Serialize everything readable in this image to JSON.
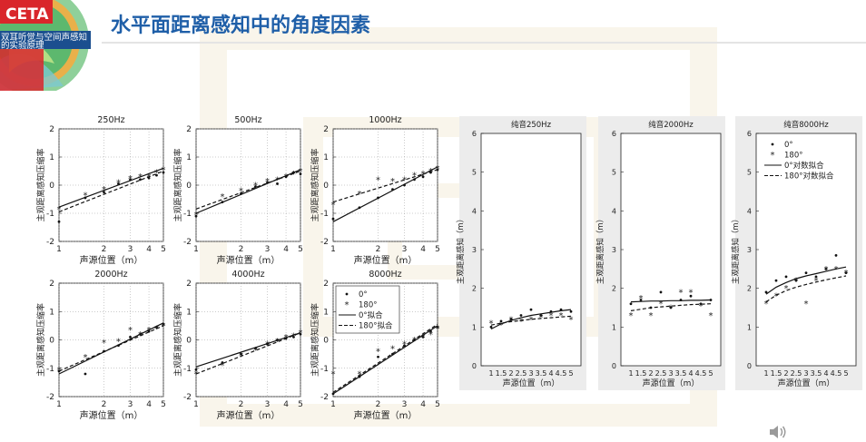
{
  "header": {
    "title": "水平面距离感知中的角度因素",
    "logo_text": "CETA",
    "logo_caption_line1": "双耳听觉与空间声感知",
    "logo_caption_line2": "的实验原理"
  },
  "colors": {
    "title": "#1f5fa8",
    "logo_red": "#d9262b",
    "logo_green": "#3f9a54",
    "logo_blue": "#1b4f8f"
  },
  "chart_data": [
    {
      "id": "p250",
      "type": "scatter",
      "title": "250Hz",
      "xlabel": "声源位置（m）",
      "ylabel": "主观距离感知压缩率",
      "xscale": "log",
      "xlim": [
        1,
        5
      ],
      "ylim": [
        -2,
        2
      ],
      "xticks": [
        1,
        2,
        3,
        4,
        5
      ],
      "xticklabels": [
        "1",
        "2",
        "3",
        "4",
        "5"
      ],
      "yticks": [
        -2,
        -1,
        0,
        1,
        2
      ],
      "yticklabels": [
        "-2",
        "-1",
        "0",
        "1",
        "2"
      ],
      "series": [
        {
          "name": "0°",
          "kind": "dots",
          "x": [
            1,
            1.5,
            2,
            2.5,
            3,
            3.5,
            4,
            4.5,
            5
          ],
          "y": [
            -1.3,
            -0.45,
            -0.25,
            0.05,
            0.2,
            0.2,
            0.25,
            0.35,
            0.45
          ]
        },
        {
          "name": "180°",
          "kind": "stars",
          "x": [
            1,
            1.5,
            2,
            2.5,
            3,
            3.5,
            4,
            4.5,
            5
          ],
          "y": [
            -0.85,
            -0.35,
            -0.15,
            0.1,
            0.25,
            0.3,
            0.3,
            0.45,
            0.55
          ]
        },
        {
          "name": "0°拟合",
          "kind": "solid",
          "x": [
            1,
            5
          ],
          "y": [
            -0.78,
            0.6
          ]
        },
        {
          "name": "180°拟合",
          "kind": "dashed",
          "x": [
            1,
            5
          ],
          "y": [
            -0.95,
            0.5
          ]
        }
      ]
    },
    {
      "id": "p500",
      "type": "scatter",
      "title": "500Hz",
      "xlabel": "声源位置（m）",
      "ylabel": "主观距离感知压缩率",
      "xscale": "log",
      "xlim": [
        1,
        5
      ],
      "ylim": [
        -2,
        2
      ],
      "xticks": [
        1,
        2,
        3,
        4,
        5
      ],
      "xticklabels": [
        "1",
        "2",
        "3",
        "4",
        "5"
      ],
      "yticks": [
        -2,
        -1,
        0,
        1,
        2
      ],
      "yticklabels": [
        "-2",
        "-1",
        "0",
        "1",
        "2"
      ],
      "series": [
        {
          "name": "0°",
          "kind": "dots",
          "x": [
            1,
            1.5,
            2,
            2.5,
            3,
            3.5,
            4,
            4.5,
            5
          ],
          "y": [
            -1.1,
            -0.6,
            -0.3,
            -0.05,
            0.1,
            0.05,
            0.3,
            0.45,
            0.4
          ]
        },
        {
          "name": "180°",
          "kind": "stars",
          "x": [
            1,
            1.5,
            2,
            2.5,
            3,
            3.5,
            4,
            4.5,
            5
          ],
          "y": [
            -1.05,
            -0.4,
            -0.2,
            0.0,
            0.15,
            0.2,
            0.3,
            0.4,
            0.5
          ]
        },
        {
          "name": "0°拟合",
          "kind": "solid",
          "x": [
            1,
            5
          ],
          "y": [
            -1.0,
            0.55
          ]
        },
        {
          "name": "180°拟合",
          "kind": "dashed",
          "x": [
            1,
            5
          ],
          "y": [
            -0.85,
            0.5
          ]
        }
      ]
    },
    {
      "id": "p1000",
      "type": "scatter",
      "title": "1000Hz",
      "xlabel": "声源位置（m）",
      "ylabel": "主观距离感知压缩率",
      "xscale": "log",
      "xlim": [
        1,
        5
      ],
      "ylim": [
        -2,
        2
      ],
      "xticks": [
        1,
        2,
        3,
        4,
        5
      ],
      "xticklabels": [
        "1",
        "2",
        "3",
        "4",
        "5"
      ],
      "yticks": [
        -2,
        -1,
        0,
        1,
        2
      ],
      "yticklabels": [
        "-2",
        "-1",
        "0",
        "1",
        "2"
      ],
      "series": [
        {
          "name": "0°",
          "kind": "dots",
          "x": [
            1,
            1.5,
            2,
            2.5,
            3,
            3.5,
            4,
            4.5,
            5
          ],
          "y": [
            -1.2,
            -0.8,
            -0.45,
            -0.15,
            0.0,
            0.2,
            0.3,
            0.45,
            0.55
          ]
        },
        {
          "name": "180°",
          "kind": "stars",
          "x": [
            1,
            1.5,
            2,
            2.5,
            3,
            3.5,
            4,
            4.5,
            5
          ],
          "y": [
            -0.7,
            -0.3,
            0.2,
            0.15,
            0.2,
            0.35,
            0.4,
            0.5,
            0.6
          ]
        },
        {
          "name": "0°拟合",
          "kind": "solid",
          "x": [
            1,
            5
          ],
          "y": [
            -1.3,
            0.65
          ]
        },
        {
          "name": "180°拟合",
          "kind": "dashed",
          "x": [
            1,
            5
          ],
          "y": [
            -0.6,
            0.55
          ]
        }
      ]
    },
    {
      "id": "p2000",
      "type": "scatter",
      "title": "2000Hz",
      "xlabel": "声源位置（m）",
      "ylabel": "主观距离感知压缩率",
      "xscale": "log",
      "xlim": [
        1,
        5
      ],
      "ylim": [
        -2,
        2
      ],
      "xticks": [
        1,
        2,
        3,
        4,
        5
      ],
      "xticklabels": [
        "1",
        "2",
        "3",
        "4",
        "5"
      ],
      "yticks": [
        -2,
        -1,
        0,
        1,
        2
      ],
      "yticklabels": [
        "-2",
        "-1",
        "0",
        "1",
        "2"
      ],
      "series": [
        {
          "name": "0°",
          "kind": "dots",
          "x": [
            1,
            1.5,
            2,
            2.5,
            3,
            3.5,
            4,
            4.5,
            5
          ],
          "y": [
            -1.1,
            -1.2,
            -0.4,
            -0.2,
            0.1,
            0.2,
            0.3,
            0.45,
            0.55
          ]
        },
        {
          "name": "180°",
          "kind": "stars",
          "x": [
            1,
            1.5,
            2,
            2.5,
            3,
            3.5,
            4,
            4.5,
            5
          ],
          "y": [
            -1.05,
            -0.6,
            -0.1,
            -0.05,
            0.35,
            0.2,
            0.35,
            0.4,
            0.5
          ]
        },
        {
          "name": "0°拟合",
          "kind": "solid",
          "x": [
            1,
            5
          ],
          "y": [
            -1.2,
            0.6
          ]
        },
        {
          "name": "180°拟合",
          "kind": "dashed",
          "x": [
            1,
            5
          ],
          "y": [
            -1.1,
            0.5
          ]
        }
      ]
    },
    {
      "id": "p4000",
      "type": "scatter",
      "title": "4000Hz",
      "xlabel": "声源位置（m）",
      "ylabel": "主观距离感知压缩率",
      "xscale": "log",
      "xlim": [
        1,
        5
      ],
      "ylim": [
        -2,
        2
      ],
      "xticks": [
        1,
        2,
        3,
        4,
        5
      ],
      "xticklabels": [
        "1",
        "2",
        "3",
        "4",
        "5"
      ],
      "yticks": [
        -2,
        -1,
        0,
        1,
        2
      ],
      "yticklabels": [
        "-2",
        "-1",
        "0",
        "1",
        "2"
      ],
      "series": [
        {
          "name": "0°",
          "kind": "dots",
          "x": [
            1,
            1.5,
            2,
            2.5,
            3,
            3.5,
            4,
            4.5,
            5
          ],
          "y": [
            -1.05,
            -0.8,
            -0.5,
            -0.3,
            -0.15,
            0.0,
            0.05,
            0.1,
            0.2
          ]
        },
        {
          "name": "180°",
          "kind": "stars",
          "x": [
            1,
            1.5,
            2,
            2.5,
            3,
            3.5,
            4,
            4.5,
            5
          ],
          "y": [
            -1.2,
            -0.9,
            -0.55,
            -0.35,
            -0.15,
            -0.05,
            0.1,
            0.15,
            0.25
          ]
        },
        {
          "name": "0°拟合",
          "kind": "solid",
          "x": [
            1,
            5
          ],
          "y": [
            -0.95,
            0.25
          ]
        },
        {
          "name": "180°拟合",
          "kind": "dashed",
          "x": [
            1,
            5
          ],
          "y": [
            -1.2,
            0.25
          ]
        }
      ]
    },
    {
      "id": "p8000",
      "type": "scatter",
      "title": "8000Hz",
      "xlabel": "声源位置（m）",
      "ylabel": "主观距离感知压缩率",
      "xscale": "log",
      "xlim": [
        1,
        5
      ],
      "ylim": [
        -2,
        2
      ],
      "xticks": [
        1,
        2,
        3,
        4,
        5
      ],
      "xticklabels": [
        "1",
        "2",
        "3",
        "4",
        "5"
      ],
      "yticks": [
        -2,
        -1,
        0,
        1,
        2
      ],
      "yticklabels": [
        "-2",
        "-1",
        "0",
        "1",
        "2"
      ],
      "legend": {
        "placement": "top-left",
        "entries": [
          "0°",
          "180°",
          "0°拟合",
          "180°拟合"
        ]
      },
      "series": [
        {
          "name": "0°",
          "kind": "dots",
          "x": [
            1,
            1.5,
            2,
            2.5,
            3,
            3.5,
            4,
            4.5,
            5
          ],
          "y": [
            -1.9,
            -1.3,
            -0.6,
            -0.5,
            -0.2,
            0.0,
            0.1,
            0.3,
            0.45
          ]
        },
        {
          "name": "180°",
          "kind": "stars",
          "x": [
            1,
            1.5,
            2,
            2.5,
            3,
            3.5,
            4,
            4.5,
            5
          ],
          "y": [
            -1.2,
            -1.2,
            -0.4,
            -0.3,
            -0.15,
            0.0,
            0.1,
            0.2,
            0.4
          ]
        },
        {
          "name": "0°拟合",
          "kind": "solid",
          "x": [
            1,
            5
          ],
          "y": [
            -1.9,
            0.5
          ]
        },
        {
          "name": "180°拟合",
          "kind": "dashed",
          "x": [
            1,
            5
          ],
          "y": [
            -1.85,
            0.55
          ]
        }
      ]
    },
    {
      "id": "t250",
      "type": "scatter",
      "title": "纯音250Hz",
      "xlabel": "声源位置（m）",
      "ylabel": "主观距离感知（m）",
      "xscale": "linear",
      "xlim": [
        0.5,
        5.5
      ],
      "ylim": [
        0,
        6
      ],
      "xticks": [
        1,
        1.5,
        2,
        2.5,
        3,
        3.5,
        4,
        4.5,
        5
      ],
      "xticklabels": [
        "1",
        "1.5",
        "2",
        "2.5",
        "3",
        "3.5",
        "4",
        "4.5",
        "5"
      ],
      "yticks": [
        0,
        1,
        2,
        3,
        4,
        5,
        6
      ],
      "yticklabels": [
        "0",
        "1",
        "2",
        "3",
        "4",
        "5",
        "6"
      ],
      "series": [
        {
          "name": "0°",
          "kind": "dots",
          "x": [
            1,
            1.5,
            2,
            2.5,
            3,
            3.5,
            4,
            4.5,
            5
          ],
          "y": [
            1.0,
            1.15,
            1.2,
            1.3,
            1.45,
            1.3,
            1.4,
            1.45,
            1.4
          ]
        },
        {
          "name": "180°",
          "kind": "stars",
          "x": [
            1,
            1.5,
            2,
            2.5,
            3,
            3.5,
            4,
            4.5,
            5
          ],
          "y": [
            1.1,
            1.05,
            1.2,
            1.15,
            1.2,
            1.25,
            1.3,
            1.3,
            1.2
          ]
        },
        {
          "name": "0°对数拟合",
          "kind": "solid",
          "x": [
            1,
            1.5,
            2,
            2.5,
            3,
            3.5,
            4,
            4.5,
            5
          ],
          "y": [
            0.95,
            1.08,
            1.17,
            1.24,
            1.3,
            1.34,
            1.38,
            1.42,
            1.45
          ]
        },
        {
          "name": "180°对数拟合",
          "kind": "dashed",
          "x": [
            1,
            1.5,
            2,
            2.5,
            3,
            3.5,
            4,
            4.5,
            5
          ],
          "y": [
            1.05,
            1.1,
            1.14,
            1.17,
            1.2,
            1.22,
            1.24,
            1.26,
            1.28
          ]
        }
      ]
    },
    {
      "id": "t2000",
      "type": "scatter",
      "title": "纯音2000Hz",
      "xlabel": "声源位置（m）",
      "ylabel": "主观距离感知（m）",
      "xscale": "linear",
      "xlim": [
        0.5,
        5.5
      ],
      "ylim": [
        0,
        6
      ],
      "xticks": [
        1,
        1.5,
        2,
        2.5,
        3,
        3.5,
        4,
        4.5,
        5
      ],
      "xticklabels": [
        "1",
        "1.5",
        "2",
        "2.5",
        "3",
        "3.5",
        "4",
        "4.5",
        "5"
      ],
      "yticks": [
        0,
        1,
        2,
        3,
        4,
        5,
        6
      ],
      "yticklabels": [
        "0",
        "1",
        "2",
        "3",
        "4",
        "5",
        "6"
      ],
      "series": [
        {
          "name": "0°",
          "kind": "dots",
          "x": [
            1,
            1.5,
            2,
            2.5,
            3,
            3.5,
            4,
            4.5,
            5
          ],
          "y": [
            1.6,
            1.7,
            1.5,
            1.9,
            1.5,
            1.7,
            1.8,
            1.6,
            1.7
          ]
        },
        {
          "name": "180°",
          "kind": "stars",
          "x": [
            1,
            1.5,
            2,
            2.5,
            3,
            3.5,
            4,
            4.5,
            5
          ],
          "y": [
            1.3,
            1.75,
            1.3,
            1.6,
            1.5,
            1.9,
            1.9,
            1.55,
            1.3
          ]
        },
        {
          "name": "0°对数拟合",
          "kind": "solid",
          "x": [
            1,
            1.5,
            2,
            2.5,
            3,
            3.5,
            4,
            4.5,
            5
          ],
          "y": [
            1.65,
            1.66,
            1.67,
            1.67,
            1.68,
            1.68,
            1.69,
            1.69,
            1.7
          ]
        },
        {
          "name": "180°对数拟合",
          "kind": "dashed",
          "x": [
            1,
            1.5,
            2,
            2.5,
            3,
            3.5,
            4,
            4.5,
            5
          ],
          "y": [
            1.42,
            1.46,
            1.5,
            1.52,
            1.54,
            1.56,
            1.58,
            1.59,
            1.6
          ]
        }
      ]
    },
    {
      "id": "t8000",
      "type": "scatter",
      "title": "纯音8000Hz",
      "xlabel": "声源位置（m）",
      "ylabel": "主观距离感知（m）",
      "xscale": "linear",
      "xlim": [
        0.5,
        5.5
      ],
      "ylim": [
        0,
        6
      ],
      "xticks": [
        1,
        1.5,
        2,
        2.5,
        3,
        3.5,
        4,
        4.5,
        5
      ],
      "xticklabels": [
        "1",
        "1.5",
        "2",
        "2.5",
        "3",
        "3.5",
        "4",
        "4.5",
        "5"
      ],
      "yticks": [
        0,
        1,
        2,
        3,
        4,
        5,
        6
      ],
      "yticklabels": [
        "0",
        "1",
        "2",
        "3",
        "4",
        "5",
        "6"
      ],
      "legend": {
        "placement": "top-left",
        "entries": [
          "0°",
          "180°",
          "0°对数拟合",
          "180°对数拟合"
        ]
      },
      "series": [
        {
          "name": "0°",
          "kind": "dots",
          "x": [
            1,
            1.5,
            2,
            2.5,
            3,
            3.5,
            4,
            4.5,
            5
          ],
          "y": [
            1.9,
            2.2,
            2.3,
            2.2,
            2.4,
            2.3,
            2.5,
            2.85,
            2.4
          ]
        },
        {
          "name": "180°",
          "kind": "stars",
          "x": [
            1,
            1.5,
            2,
            2.5,
            3,
            3.5,
            4,
            4.5,
            5
          ],
          "y": [
            1.6,
            1.8,
            2.0,
            2.2,
            1.6,
            2.2,
            2.5,
            2.5,
            2.4
          ]
        },
        {
          "name": "0°对数拟合",
          "kind": "solid",
          "x": [
            1,
            1.5,
            2,
            2.5,
            3,
            3.5,
            4,
            4.5,
            5
          ],
          "y": [
            1.85,
            2.03,
            2.15,
            2.25,
            2.32,
            2.38,
            2.44,
            2.5,
            2.55
          ]
        },
        {
          "name": "180°对数拟合",
          "kind": "dashed",
          "x": [
            1,
            1.5,
            2,
            2.5,
            3,
            3.5,
            4,
            4.5,
            5
          ],
          "y": [
            1.65,
            1.82,
            1.94,
            2.03,
            2.1,
            2.16,
            2.22,
            2.27,
            2.32
          ]
        }
      ]
    }
  ]
}
